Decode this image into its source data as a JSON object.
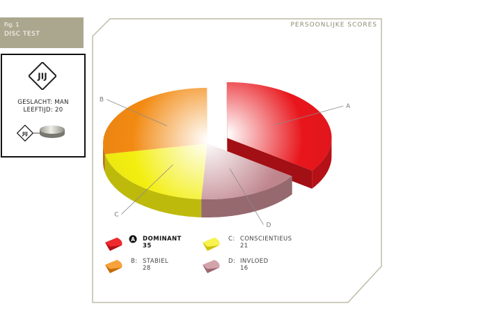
{
  "figure": {
    "number": "Fig. 1",
    "title": "DISC TEST"
  },
  "profile": {
    "logo_text": "JIJ",
    "small_logo_text": "JIJ",
    "gender": "GESLACHT: MAN",
    "age": "LEEFTIJD: 20"
  },
  "chart_data": {
    "type": "pie",
    "title": "PERSOONLIJKE SCORES",
    "exploded": "A",
    "slices": [
      {
        "label": "A",
        "name": "DOMINANT",
        "value": 35,
        "color": "#e8161c"
      },
      {
        "label": "D",
        "name": "INVLOED",
        "value": 16,
        "color": "#c0868e"
      },
      {
        "label": "C",
        "name": "CONSCIENTIEUS",
        "value": 21,
        "color": "#f3ee10"
      },
      {
        "label": "B",
        "name": "STABIEL",
        "value": 28,
        "color": "#f28a12"
      }
    ]
  },
  "legend": [
    {
      "key": "A",
      "prefix": "",
      "name": "DOMINANT",
      "value": "35",
      "highlight": true
    },
    {
      "key": "C",
      "prefix": "C:",
      "name": "CONSCIENTIEUS",
      "value": "21",
      "highlight": false
    },
    {
      "key": "B",
      "prefix": "B:",
      "name": "STABIEL",
      "value": "28",
      "highlight": false
    },
    {
      "key": "D",
      "prefix": "D:",
      "name": "INVLOED",
      "value": "16",
      "highlight": false
    }
  ]
}
